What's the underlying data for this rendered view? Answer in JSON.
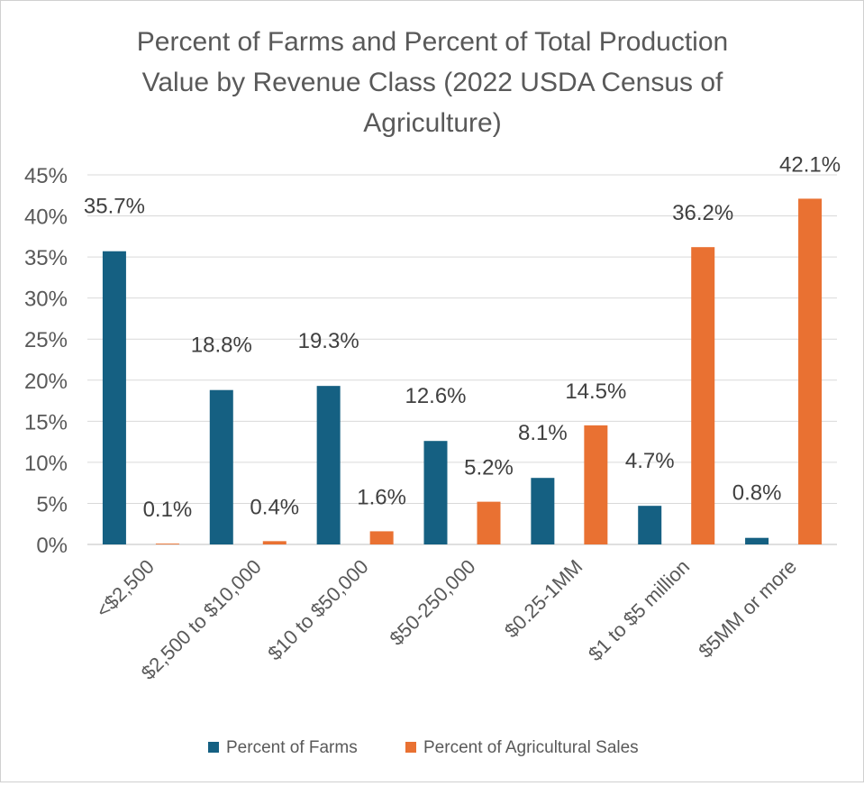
{
  "chart_data": {
    "type": "bar",
    "title_lines": [
      "Percent of Farms and Percent of Total Production",
      "Value by Revenue Class (2022 USDA Census of",
      "Agriculture)"
    ],
    "categories": [
      "<$2,500",
      "$2,500 to $10,000",
      "$10 to $50,000",
      "$50-250,000",
      "$0.25-1MM",
      "$1 to $5 million",
      "$5MM or more"
    ],
    "series": [
      {
        "name": "Percent of Farms",
        "color": "#156082",
        "values": [
          35.7,
          18.8,
          19.3,
          12.6,
          8.1,
          4.7,
          0.8
        ],
        "labels": [
          "35.7%",
          "18.8%",
          "19.3%",
          "12.6%",
          "8.1%",
          "4.7%",
          "0.8%"
        ]
      },
      {
        "name": "Percent of Agricultural Sales",
        "color": "#E97132",
        "values": [
          0.1,
          0.4,
          1.6,
          5.2,
          14.5,
          36.2,
          42.1
        ],
        "labels": [
          "0.1%",
          "0.4%",
          "1.6%",
          "5.2%",
          "14.5%",
          "36.2%",
          "42.1%"
        ]
      }
    ],
    "ylim": [
      0,
      45
    ],
    "yticks": [
      0,
      5,
      10,
      15,
      20,
      25,
      30,
      35,
      40,
      45
    ],
    "ytick_labels": [
      "0%",
      "5%",
      "10%",
      "15%",
      "20%",
      "25%",
      "30%",
      "35%",
      "40%",
      "45%"
    ],
    "xlabel": "",
    "ylabel": "",
    "grid": true,
    "legend_position": "bottom"
  }
}
